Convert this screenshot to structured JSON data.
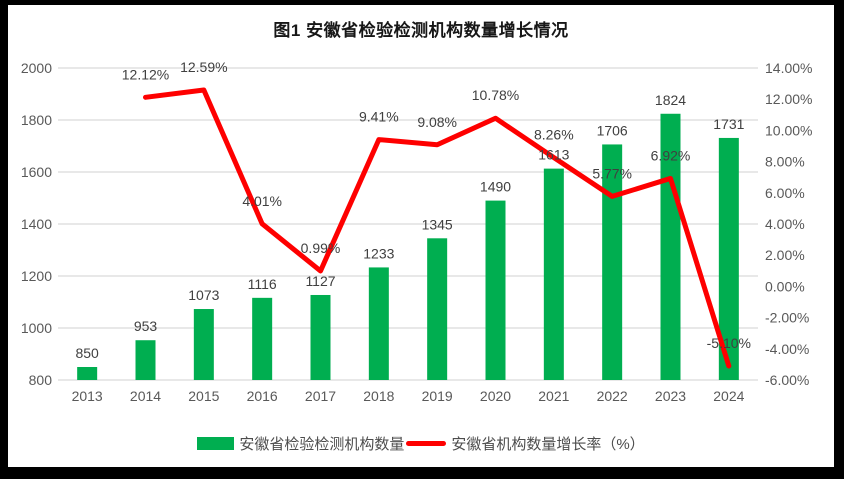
{
  "title": "图1 安徽省检验检测机构数量增长情况",
  "colors": {
    "bar": "#00AE50",
    "line": "#FE0000",
    "grid": "#D9D9D9",
    "axis_text": "#595959",
    "data_label_text": "#404040",
    "frame": "#000000",
    "chart_background": "#FFFFFF"
  },
  "chart_data": {
    "type": "bar+line",
    "title": "图1 安徽省检验检测机构数量增长情况",
    "categories": [
      "2013",
      "2014",
      "2015",
      "2016",
      "2017",
      "2018",
      "2019",
      "2020",
      "2021",
      "2022",
      "2023",
      "2024"
    ],
    "series": [
      {
        "name": "安徽省检验检测机构数量",
        "type": "bar",
        "axis": "left",
        "start_index": 0,
        "values": [
          850,
          953,
          1073,
          1116,
          1127,
          1233,
          1345,
          1490,
          1613,
          1706,
          1824,
          1731
        ],
        "labels": [
          "850",
          "953",
          "1073",
          "1116",
          "1127",
          "1233",
          "1345",
          "1490",
          "1613",
          "1706",
          "1824",
          "1731"
        ]
      },
      {
        "name": "安徽省机构数量增长率（%）",
        "type": "line",
        "axis": "right",
        "start_index": 1,
        "values": [
          12.12,
          12.59,
          4.01,
          0.99,
          9.41,
          9.08,
          10.78,
          8.26,
          5.77,
          6.92,
          -5.1
        ],
        "labels": [
          "12.12%",
          "12.59%",
          "4.01%",
          "0.99%",
          "9.41%",
          "9.08%",
          "10.78%",
          "8.26%",
          "5.77%",
          "6.92%",
          "-5.10%"
        ]
      }
    ],
    "left_axis": {
      "min": 800,
      "max": 2000,
      "step": 200,
      "ticks_top_down": [
        "2000",
        "1800",
        "1600",
        "1400",
        "1200",
        "1000",
        "800"
      ]
    },
    "right_axis": {
      "min": -6,
      "max": 14,
      "step": 2,
      "ticks_top_down": [
        "14.00%",
        "12.00%",
        "10.00%",
        "8.00%",
        "6.00%",
        "4.00%",
        "2.00%",
        "0.00%",
        "-2.00%",
        "-4.00%",
        "-6.00%"
      ]
    },
    "grid": true,
    "legend_position": "bottom"
  },
  "legend": {
    "items": [
      {
        "label": "安徽省检验检测机构数量",
        "swatch": "bar"
      },
      {
        "label": "安徽省机构数量增长率（%）",
        "swatch": "line"
      }
    ]
  }
}
